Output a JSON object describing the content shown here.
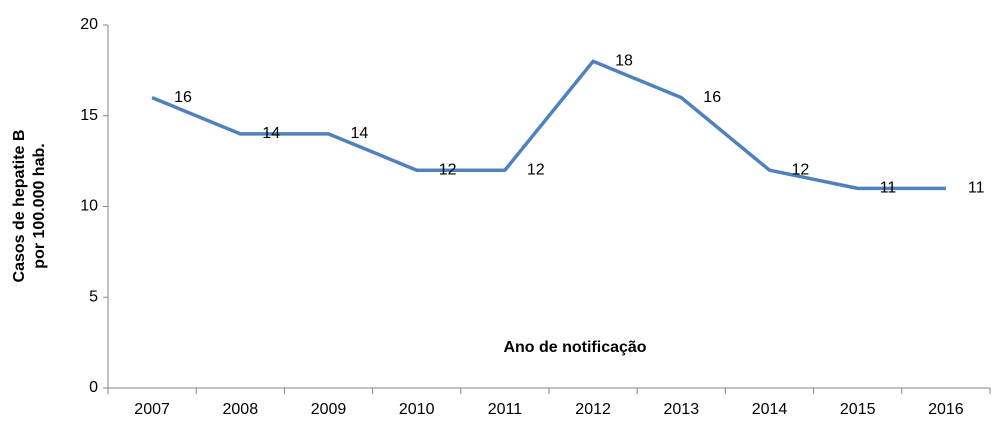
{
  "chart_data": {
    "type": "line",
    "categories": [
      "2007",
      "2008",
      "2009",
      "2010",
      "2011",
      "2012",
      "2013",
      "2014",
      "2015",
      "2016"
    ],
    "series": [
      {
        "color": "#4f81bd",
        "values": [
          16,
          14,
          14,
          12,
          12,
          18,
          16,
          12,
          11,
          11
        ]
      }
    ],
    "ylim": [
      0,
      20
    ],
    "yticks": [
      0,
      5,
      10,
      15,
      20
    ],
    "ylabel": [
      "Casos de hepatite B",
      "por 100.000 hab."
    ],
    "xlabel": "Ano de notificação",
    "data_labels": true,
    "grid": false
  }
}
